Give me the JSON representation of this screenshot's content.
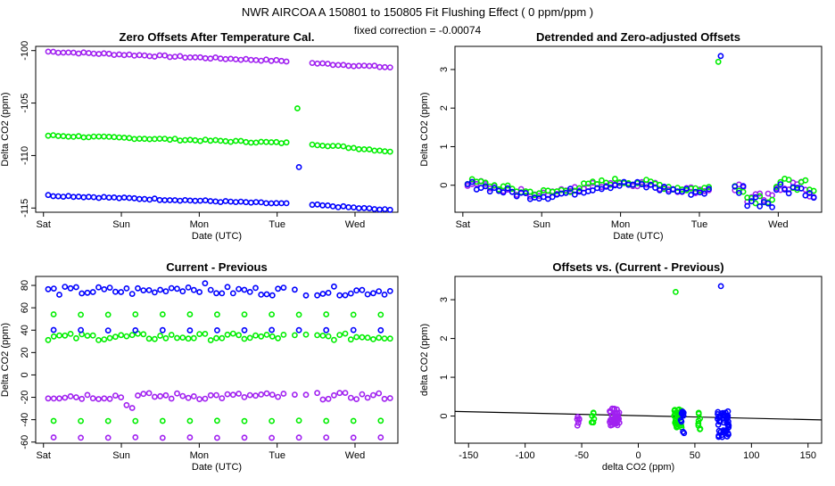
{
  "header": {
    "title": "NWR   AIRCOA A   150801 to 150805   Fit Flushing Effect ( 0 ppm/ppm )",
    "subtitle": "fixed correction = -0.00074"
  },
  "colors": {
    "blue": "#0000ff",
    "green": "#00ee00",
    "purple": "#a020f0",
    "line": "#000000"
  },
  "chart_data": [
    {
      "id": "zero-offsets",
      "type": "scatter",
      "title": "Zero Offsets After Temperature Cal.",
      "xlabel": "Date (UTC)",
      "ylabel": "Delta CO2 (ppm)",
      "xlim": [
        -0.1,
        4.55
      ],
      "ylim": [
        -115.4,
        -99.6
      ],
      "xticks": [
        0,
        1,
        2,
        3,
        4
      ],
      "xtick_labels": [
        "Sat",
        "Sun",
        "Mon",
        "Tue",
        "Wed"
      ],
      "yticks": [
        -115,
        -110,
        -105,
        -100
      ],
      "series": [
        {
          "name": "purple",
          "color": "purple",
          "start": 0.06,
          "end": 3.12,
          "v0": -100.1,
          "v1": -101.0,
          "start2": 3.45,
          "end2": 4.45,
          "w0": -101.2,
          "w1": -101.6,
          "jitter": 0.08
        },
        {
          "name": "green",
          "color": "green",
          "start": 0.06,
          "end": 3.12,
          "v0": -108.1,
          "v1": -108.8,
          "start2": 3.45,
          "end2": 4.45,
          "w0": -108.9,
          "w1": -109.6,
          "jitter": 0.08
        },
        {
          "name": "blue",
          "color": "blue",
          "start": 0.06,
          "end": 3.12,
          "v0": -113.8,
          "v1": -114.6,
          "start2": 3.45,
          "end2": 4.45,
          "w0": -114.7,
          "w1": -115.2,
          "jitter": 0.07
        }
      ],
      "outliers": [
        {
          "x": 3.26,
          "y": -105.5,
          "color": "green"
        },
        {
          "x": 3.28,
          "y": -111.1,
          "color": "blue"
        }
      ]
    },
    {
      "id": "detrended",
      "type": "scatter",
      "title": "Detrended and Zero-adjusted Offsets",
      "xlabel": "Date (UTC)",
      "ylabel": "Delta CO2 (ppm)",
      "xlim": [
        -0.1,
        4.55
      ],
      "ylim": [
        -0.7,
        3.6
      ],
      "xticks": [
        0,
        1,
        2,
        3,
        4
      ],
      "xtick_labels": [
        "Sat",
        "Sun",
        "Mon",
        "Tue",
        "Wed"
      ],
      "yticks": [
        0,
        1,
        2,
        3
      ],
      "series": [
        {
          "name": "purple",
          "color": "purple",
          "start": 0.06,
          "end": 3.12,
          "start2": 3.45,
          "end2": 4.45,
          "base": -0.05,
          "amp": 0.15
        },
        {
          "name": "green",
          "color": "green",
          "start": 0.06,
          "end": 3.12,
          "start2": 3.45,
          "end2": 4.45,
          "base": -0.02,
          "amp": 0.15
        },
        {
          "name": "blue",
          "color": "blue",
          "start": 0.06,
          "end": 3.12,
          "start2": 3.45,
          "end2": 4.45,
          "base": -0.1,
          "amp": 0.17
        }
      ],
      "outliers": [
        {
          "x": 3.24,
          "y": 3.2,
          "color": "green"
        },
        {
          "x": 3.27,
          "y": 3.35,
          "color": "blue"
        }
      ]
    },
    {
      "id": "current-previous",
      "type": "scatter",
      "title": "Current - Previous",
      "xlabel": "Date (UTC)",
      "ylabel": "Delta CO2 (ppm)",
      "xlim": [
        -0.1,
        4.55
      ],
      "ylim": [
        -61,
        88
      ],
      "xticks": [
        0,
        1,
        2,
        3,
        4
      ],
      "xtick_labels": [
        "Sat",
        "Sun",
        "Mon",
        "Tue",
        "Wed"
      ],
      "yticks": [
        -60,
        -40,
        -20,
        0,
        20,
        40,
        60,
        80
      ],
      "series": [
        {
          "name": "blue-top",
          "color": "blue",
          "level": 75,
          "jitter": 4,
          "mode": "dense"
        },
        {
          "name": "green-mid",
          "color": "green",
          "level": 34,
          "jitter": 3,
          "mode": "dense"
        },
        {
          "name": "purple-band",
          "color": "purple",
          "level": -19,
          "jitter": 3,
          "mode": "dense"
        },
        {
          "name": "green-54",
          "color": "green",
          "level": 54,
          "jitter": 0.5,
          "mode": "sparse"
        },
        {
          "name": "blue-40",
          "color": "blue",
          "level": 40,
          "jitter": 0.5,
          "mode": "sparse"
        },
        {
          "name": "green-41",
          "color": "green",
          "level": -41,
          "jitter": 0.5,
          "mode": "sparse"
        },
        {
          "name": "purple-56",
          "color": "purple",
          "level": -56,
          "jitter": 0.5,
          "mode": "sparse"
        }
      ]
    },
    {
      "id": "offsets-vs-diff",
      "type": "scatter",
      "title": "Offsets vs. (Current - Previous)",
      "xlabel": "delta CO2 (ppm)",
      "ylabel": "delta CO2 (ppm)",
      "xlim": [
        -162,
        162
      ],
      "ylim": [
        -0.7,
        3.6
      ],
      "xticks": [
        -150,
        -100,
        -50,
        0,
        50,
        100,
        150
      ],
      "yticks": [
        0,
        1,
        2,
        3
      ],
      "fit_line": {
        "x0": -162,
        "y0": 0.12,
        "x1": 162,
        "y1": -0.1
      },
      "clusters": [
        {
          "color": "purple",
          "x": -53,
          "spread": 1.2,
          "n": 6,
          "ymin": -0.3,
          "ymax": 0.0
        },
        {
          "color": "green",
          "x": -40,
          "spread": 1.2,
          "n": 6,
          "ymin": -0.3,
          "ymax": 0.1
        },
        {
          "color": "purple",
          "x": -21,
          "spread": 4.5,
          "n": 40,
          "ymin": -0.25,
          "ymax": 0.2
        },
        {
          "color": "green",
          "x": 35,
          "spread": 3.5,
          "n": 32,
          "ymin": -0.3,
          "ymax": 0.2
        },
        {
          "color": "blue",
          "x": 39,
          "spread": 1.5,
          "n": 10,
          "ymin": -0.45,
          "ymax": 0.15
        },
        {
          "color": "green",
          "x": 54,
          "spread": 1.0,
          "n": 8,
          "ymin": -0.35,
          "ymax": 0.1
        },
        {
          "color": "blue",
          "x": 75,
          "spread": 5.0,
          "n": 45,
          "ymin": -0.55,
          "ymax": 0.15
        }
      ],
      "outliers": [
        {
          "x": 33,
          "y": 3.2,
          "color": "green"
        },
        {
          "x": 73,
          "y": 3.35,
          "color": "blue"
        }
      ]
    }
  ]
}
